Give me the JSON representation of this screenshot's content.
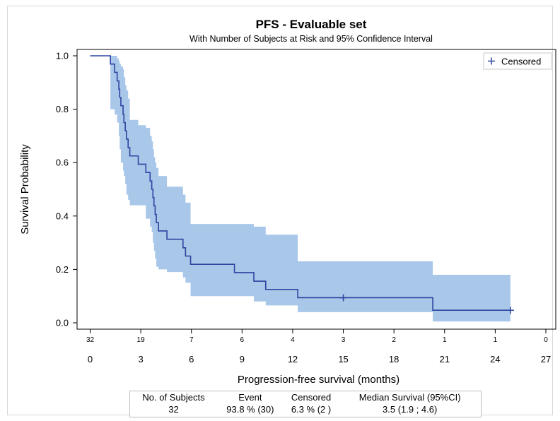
{
  "chart_data": {
    "type": "line",
    "title": "PFS - Evaluable set",
    "subtitle": "With Number of Subjects at Risk and 95% Confidence Interval",
    "xlabel": "Progression-free survival (months)",
    "ylabel": "Survival Probability",
    "xlim": [
      0,
      27
    ],
    "ylim": [
      0,
      1.0
    ],
    "x_ticks": [
      0,
      3,
      6,
      9,
      12,
      15,
      18,
      21,
      24,
      27
    ],
    "x_tick_labels": [
      "0",
      "3",
      "6",
      "9",
      "12",
      "15",
      "18",
      "21",
      "24",
      "27"
    ],
    "y_ticks": [
      0.0,
      0.2,
      0.4,
      0.6,
      0.8,
      1.0
    ],
    "y_tick_labels": [
      "0.0",
      "0.2",
      "0.4",
      "0.6",
      "0.8",
      "1.0"
    ],
    "grid": false,
    "legend": {
      "position": "top-right",
      "entries": [
        {
          "marker": "+",
          "label": "Censored"
        }
      ]
    },
    "series": [
      {
        "steps": [
          [
            0,
            1.0
          ],
          [
            1.2,
            0.969
          ],
          [
            1.45,
            0.938
          ],
          [
            1.6,
            0.906
          ],
          [
            1.7,
            0.875
          ],
          [
            1.75,
            0.844
          ],
          [
            1.82,
            0.813
          ],
          [
            1.95,
            0.781
          ],
          [
            2.0,
            0.75
          ],
          [
            2.08,
            0.719
          ],
          [
            2.15,
            0.688
          ],
          [
            2.25,
            0.656
          ],
          [
            2.35,
            0.625
          ],
          [
            2.85,
            0.594
          ],
          [
            3.3,
            0.563
          ],
          [
            3.55,
            0.531
          ],
          [
            3.65,
            0.5
          ],
          [
            3.72,
            0.469
          ],
          [
            3.78,
            0.438
          ],
          [
            3.85,
            0.406
          ],
          [
            3.92,
            0.375
          ],
          [
            4.05,
            0.344
          ],
          [
            4.55,
            0.313
          ],
          [
            5.5,
            0.281
          ],
          [
            5.65,
            0.25
          ],
          [
            5.95,
            0.219
          ],
          [
            8.55,
            0.188
          ],
          [
            9.7,
            0.156
          ],
          [
            10.4,
            0.125
          ],
          [
            12.3,
            0.094
          ],
          [
            20.3,
            0.047
          ],
          [
            24.9,
            0.047
          ]
        ],
        "ci_lower": [
          1.0,
          0.8,
          0.78,
          0.75,
          0.7,
          0.65,
          0.6,
          0.57,
          0.55,
          0.52,
          0.48,
          0.46,
          0.44,
          0.44,
          0.39,
          0.36,
          0.34,
          0.3,
          0.27,
          0.24,
          0.21,
          0.2,
          0.19,
          0.17,
          0.15,
          0.1,
          0.1,
          0.08,
          0.065,
          0.04,
          0.005,
          0.005
        ],
        "ci_upper": [
          1.0,
          1.0,
          1.0,
          0.99,
          0.98,
          0.97,
          0.96,
          0.95,
          0.92,
          0.89,
          0.87,
          0.84,
          0.76,
          0.74,
          0.73,
          0.7,
          0.68,
          0.65,
          0.62,
          0.6,
          0.58,
          0.55,
          0.51,
          0.48,
          0.45,
          0.37,
          0.37,
          0.36,
          0.33,
          0.23,
          0.18,
          0.18
        ],
        "censored": [
          [
            15.0,
            0.094
          ],
          [
            24.9,
            0.047
          ]
        ],
        "color": "#2b45a0",
        "ci_color": "#a9c7e9"
      }
    ],
    "at_risk": {
      "x": [
        0,
        3,
        6,
        9,
        12,
        15,
        18,
        21,
        24,
        27
      ],
      "counts": [
        "32",
        "19",
        "7",
        "6",
        "4",
        "3",
        "2",
        "1",
        "1",
        "0"
      ]
    }
  },
  "summary_table": {
    "headers": [
      "No. of Subjects",
      "Event",
      "Censored",
      "Median Survival (95%CI)"
    ],
    "values": [
      "32",
      "93.8 % (30)",
      "6.3 % (2 )",
      "3.5 (1.9 ; 4.6)"
    ]
  }
}
